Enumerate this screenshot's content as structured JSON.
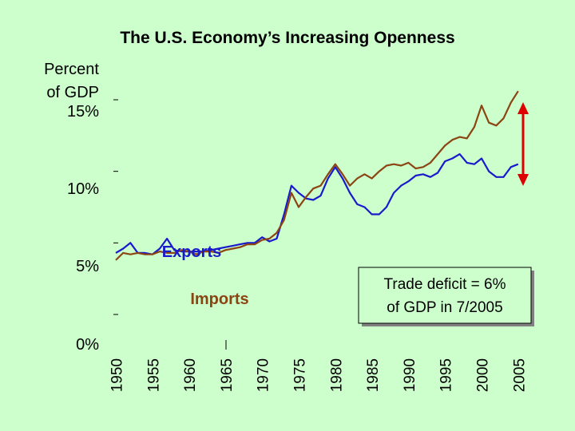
{
  "chart_data": {
    "type": "line",
    "title": "The U.S. Economy’s Increasing Openness",
    "ylabel_line1": "Percent",
    "ylabel_line2": "of GDP",
    "ylim": [
      0,
      15
    ],
    "yticks": [
      "0%",
      "5%",
      "10%",
      "15%"
    ],
    "xlim": [
      1950,
      2006
    ],
    "xticks": [
      "1950",
      "1955",
      "1960",
      "1965",
      "1970",
      "1975",
      "1980",
      "1985",
      "1990",
      "1995",
      "2000",
      "2005"
    ],
    "series": [
      {
        "name": "Exports",
        "color": "#1a1acc",
        "x": [
          1950,
          1951,
          1952,
          1953,
          1954,
          1955,
          1956,
          1957,
          1958,
          1959,
          1960,
          1961,
          1962,
          1963,
          1964,
          1965,
          1966,
          1967,
          1968,
          1969,
          1970,
          1971,
          1972,
          1973,
          1974,
          1975,
          1976,
          1977,
          1978,
          1979,
          1980,
          1981,
          1982,
          1983,
          1984,
          1985,
          1986,
          1987,
          1988,
          1989,
          1990,
          1991,
          1992,
          1993,
          1994,
          1995,
          1996,
          1997,
          1998,
          1999,
          2000,
          2001,
          2002,
          2003,
          2004,
          2005
        ],
        "values": [
          4.3,
          4.6,
          5.0,
          4.3,
          4.3,
          4.2,
          4.6,
          5.3,
          4.5,
          4.4,
          4.4,
          4.4,
          4.4,
          4.5,
          4.6,
          4.7,
          4.8,
          4.9,
          5.0,
          5.0,
          5.4,
          5.1,
          5.3,
          7.0,
          9.0,
          8.5,
          8.1,
          8.0,
          8.3,
          9.5,
          10.3,
          9.5,
          8.5,
          7.7,
          7.5,
          7.0,
          7.0,
          7.5,
          8.5,
          9.0,
          9.3,
          9.7,
          9.8,
          9.6,
          9.9,
          10.7,
          10.9,
          11.2,
          10.6,
          10.5,
          10.9,
          10.0,
          9.6,
          9.6,
          10.3,
          10.5
        ]
      },
      {
        "name": "Imports",
        "color": "#8b4513",
        "x": [
          1950,
          1951,
          1952,
          1953,
          1954,
          1955,
          1956,
          1957,
          1958,
          1959,
          1960,
          1961,
          1962,
          1963,
          1964,
          1965,
          1966,
          1967,
          1968,
          1969,
          1970,
          1971,
          1972,
          1973,
          1974,
          1975,
          1976,
          1977,
          1978,
          1979,
          1980,
          1981,
          1982,
          1983,
          1984,
          1985,
          1986,
          1987,
          1988,
          1989,
          1990,
          1991,
          1992,
          1993,
          1994,
          1995,
          1996,
          1997,
          1998,
          1999,
          2000,
          2001,
          2002,
          2003,
          2004,
          2005
        ],
        "values": [
          3.8,
          4.3,
          4.2,
          4.3,
          4.2,
          4.2,
          4.4,
          4.3,
          4.3,
          4.5,
          4.4,
          4.2,
          4.4,
          4.4,
          4.3,
          4.5,
          4.6,
          4.7,
          4.9,
          4.9,
          5.2,
          5.3,
          5.7,
          6.6,
          8.5,
          7.5,
          8.2,
          8.8,
          9.0,
          9.8,
          10.5,
          9.8,
          9.0,
          9.5,
          9.8,
          9.5,
          10.0,
          10.4,
          10.5,
          10.4,
          10.6,
          10.2,
          10.3,
          10.6,
          11.2,
          11.8,
          12.2,
          12.4,
          12.3,
          13.1,
          14.6,
          13.4,
          13.2,
          13.7,
          14.8,
          15.6
        ]
      }
    ],
    "annotation": "Trade deficit = 6% of GDP in 7/2005",
    "annotation_line1": "Trade deficit = 6%",
    "annotation_line2": "of GDP in 7/2005",
    "grid": false,
    "legend": "inline labels"
  }
}
